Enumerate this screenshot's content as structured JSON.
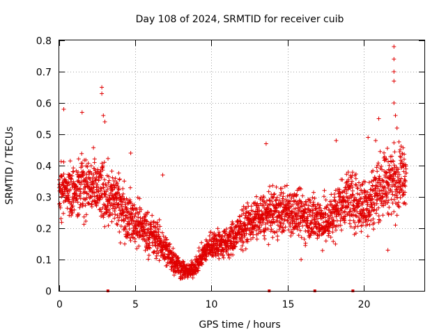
{
  "chart_data": {
    "type": "scatter",
    "title": "Day 108 of 2024, SRMTID for receiver cuib",
    "xlabel": "GPS time / hours",
    "ylabel": "SRMTID / TECUs",
    "xlim": [
      0,
      24
    ],
    "ylim": [
      0,
      0.8
    ],
    "x_ticks": [
      0,
      5,
      10,
      15,
      20
    ],
    "y_ticks": [
      0,
      0.1,
      0.2,
      0.3,
      0.4,
      0.5,
      0.6,
      0.7,
      0.8
    ],
    "x_tick_labels": [
      "0",
      "5",
      "10",
      "15",
      "20"
    ],
    "y_tick_labels": [
      "0",
      "0.1",
      "0.2",
      "0.3",
      "0.4",
      "0.5",
      "0.6",
      "0.7",
      "0.8"
    ],
    "grid": true,
    "marker": "+",
    "color": "#e00000",
    "trend": [
      [
        0.0,
        0.3
      ],
      [
        0.5,
        0.33
      ],
      [
        1.0,
        0.32
      ],
      [
        1.5,
        0.34
      ],
      [
        2.0,
        0.33
      ],
      [
        2.5,
        0.32
      ],
      [
        3.0,
        0.31
      ],
      [
        3.5,
        0.3
      ],
      [
        4.0,
        0.27
      ],
      [
        4.5,
        0.24
      ],
      [
        5.0,
        0.22
      ],
      [
        5.5,
        0.2
      ],
      [
        6.0,
        0.18
      ],
      [
        6.5,
        0.16
      ],
      [
        7.0,
        0.13
      ],
      [
        7.5,
        0.1
      ],
      [
        8.0,
        0.07
      ],
      [
        8.5,
        0.06
      ],
      [
        9.0,
        0.08
      ],
      [
        9.5,
        0.12
      ],
      [
        10.0,
        0.15
      ],
      [
        10.5,
        0.15
      ],
      [
        11.0,
        0.15
      ],
      [
        11.5,
        0.17
      ],
      [
        12.0,
        0.2
      ],
      [
        12.5,
        0.22
      ],
      [
        13.0,
        0.23
      ],
      [
        13.5,
        0.24
      ],
      [
        14.0,
        0.25
      ],
      [
        14.5,
        0.25
      ],
      [
        15.0,
        0.26
      ],
      [
        15.5,
        0.25
      ],
      [
        16.0,
        0.24
      ],
      [
        16.5,
        0.24
      ],
      [
        17.0,
        0.23
      ],
      [
        17.5,
        0.22
      ],
      [
        18.0,
        0.24
      ],
      [
        18.5,
        0.28
      ],
      [
        19.0,
        0.3
      ],
      [
        19.5,
        0.28
      ],
      [
        20.0,
        0.27
      ],
      [
        20.5,
        0.29
      ],
      [
        21.0,
        0.33
      ],
      [
        21.5,
        0.35
      ],
      [
        22.0,
        0.36
      ],
      [
        22.5,
        0.37
      ],
      [
        22.8,
        0.38
      ]
    ],
    "spread": [
      [
        0.0,
        0.08
      ],
      [
        3.0,
        0.09
      ],
      [
        5.0,
        0.07
      ],
      [
        7.0,
        0.05
      ],
      [
        8.5,
        0.02
      ],
      [
        10.0,
        0.04
      ],
      [
        13.0,
        0.06
      ],
      [
        15.0,
        0.07
      ],
      [
        18.0,
        0.07
      ],
      [
        21.0,
        0.09
      ],
      [
        22.8,
        0.09
      ]
    ],
    "notable_points": [
      {
        "x": 0.3,
        "y": 0.58
      },
      {
        "x": 2.8,
        "y": 0.65
      },
      {
        "x": 2.8,
        "y": 0.63
      },
      {
        "x": 2.9,
        "y": 0.56
      },
      {
        "x": 3.0,
        "y": 0.54
      },
      {
        "x": 1.5,
        "y": 0.57
      },
      {
        "x": 4.7,
        "y": 0.44
      },
      {
        "x": 6.8,
        "y": 0.37
      },
      {
        "x": 7.0,
        "y": 0.17
      },
      {
        "x": 13.6,
        "y": 0.47
      },
      {
        "x": 15.9,
        "y": 0.1
      },
      {
        "x": 18.2,
        "y": 0.48
      },
      {
        "x": 19.4,
        "y": 0.18
      },
      {
        "x": 20.3,
        "y": 0.49
      },
      {
        "x": 20.8,
        "y": 0.48
      },
      {
        "x": 21.0,
        "y": 0.55
      },
      {
        "x": 21.6,
        "y": 0.13
      },
      {
        "x": 22.0,
        "y": 0.6
      },
      {
        "x": 22.0,
        "y": 0.67
      },
      {
        "x": 22.0,
        "y": 0.7
      },
      {
        "x": 22.0,
        "y": 0.74
      },
      {
        "x": 22.0,
        "y": 0.78
      },
      {
        "x": 22.1,
        "y": 0.56
      },
      {
        "x": 22.2,
        "y": 0.52
      },
      {
        "x": 22.4,
        "y": 0.43
      },
      {
        "x": 22.1,
        "y": 0.21
      }
    ],
    "point_spacing_hours": 0.025,
    "points_per_time": 3,
    "rug_marks_x": [
      3.2,
      13.8,
      16.8,
      19.3
    ]
  }
}
